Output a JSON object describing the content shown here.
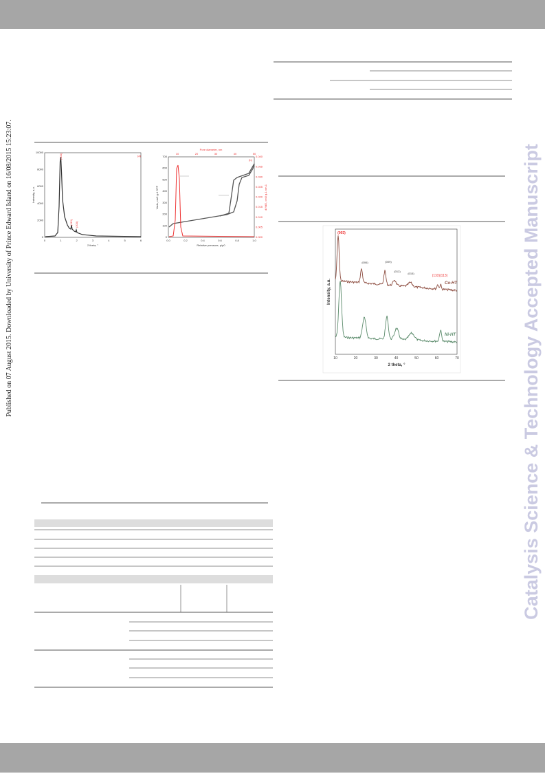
{
  "side_note": "Published on 07 August 2015. Downloaded by University of Prince Edward Island on 16/08/2015 15:23:07.",
  "watermark": "Catalysis Science & Technology Accepted Manuscript",
  "figure_1": {
    "panel_a": {
      "tag": "(a)",
      "y_label": "Intensity, a.u.",
      "x_label": "2 theta, °",
      "xticks": [
        "0",
        "1",
        "2",
        "3",
        "4",
        "5",
        "6"
      ],
      "yticks": [
        "0",
        "2000",
        "4000",
        "6000",
        "8000",
        "10000"
      ],
      "peaks": [
        "(100)",
        "(110)",
        "(200)"
      ]
    },
    "panel_b": {
      "tag": "(b)",
      "top_label": "Pore diameter, nm",
      "x_label": "Relative pressure, p/p0",
      "y_label": "Vads, cm3 g-1 STP",
      "y2_label": "dV/dD, cm3 g-1 nm-1",
      "xticks": [
        "0.0",
        "0.2",
        "0.4",
        "0.6",
        "0.8",
        "1.0"
      ],
      "top_ticks": [
        "10",
        "20",
        "30",
        "40",
        "50"
      ],
      "yticks": [
        "0",
        "100",
        "200",
        "300",
        "400",
        "500",
        "600",
        "700"
      ],
      "y2ticks": [
        "0.000",
        "0.005",
        "0.010",
        "0.015",
        "0.020",
        "0.025",
        "0.030",
        "0.035",
        "0.040"
      ]
    }
  },
  "figure_2": {
    "y_label": "Intensity, a.u.",
    "x_label": "2 theta, °",
    "xticks": [
      "10",
      "20",
      "30",
      "40",
      "50",
      "60",
      "70"
    ],
    "peaks": [
      "(003)",
      "(006)",
      "(009)",
      "(012)",
      "(015)",
      "(110)(113)"
    ],
    "series": [
      "Co-HT",
      "Ni-HT"
    ]
  }
}
